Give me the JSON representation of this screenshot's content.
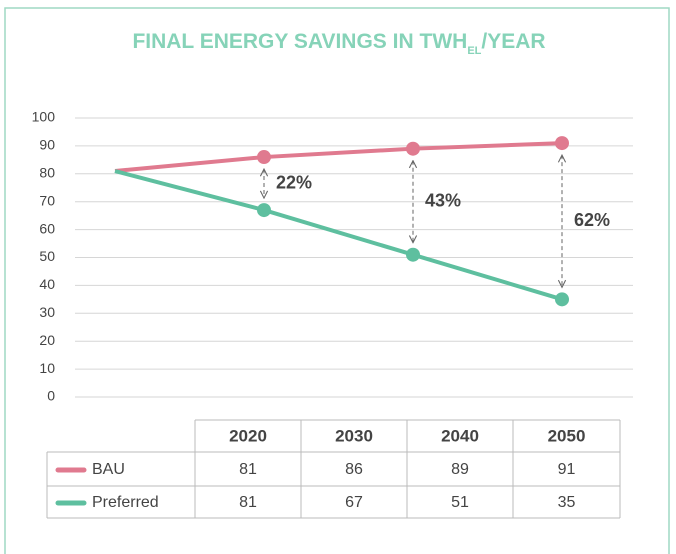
{
  "chart_data": {
    "type": "line",
    "title_parts": [
      "FINAL ENERGY SAVINGS IN TWH",
      "EL",
      "/YEAR"
    ],
    "categories": [
      "2020",
      "2030",
      "2040",
      "2050"
    ],
    "series": [
      {
        "name": "BAU",
        "color": "#e07a8f",
        "values": [
          81,
          86,
          89,
          91
        ]
      },
      {
        "name": "Preferred",
        "color": "#5ebf9f",
        "values": [
          81,
          67,
          51,
          35
        ]
      }
    ],
    "savings": [
      22,
      43,
      62
    ],
    "savings_labels": [
      "22%",
      "43%",
      "62%"
    ],
    "ylim": [
      0,
      100
    ],
    "yticks": [
      0,
      10,
      20,
      30,
      40,
      50,
      60,
      70,
      80,
      90,
      100
    ],
    "grid": true
  }
}
